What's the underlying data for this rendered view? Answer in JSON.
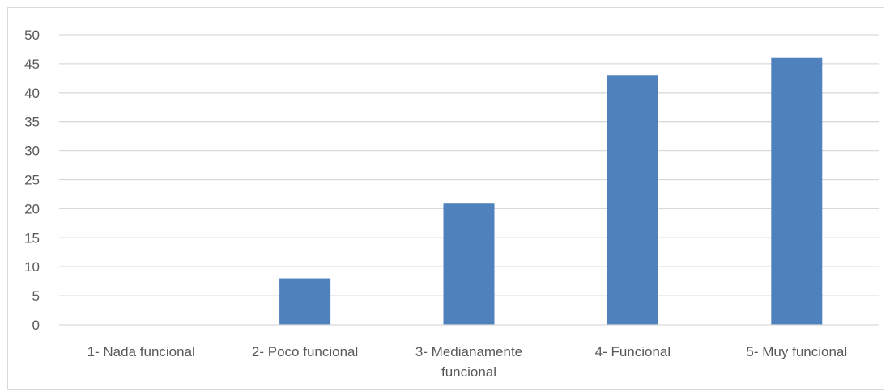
{
  "chart_data": {
    "type": "bar",
    "title": "",
    "xlabel": "",
    "ylabel": "",
    "categories": [
      [
        "1- Nada funcional"
      ],
      [
        "2- Poco funcional"
      ],
      [
        "3- Medianamente",
        "funcional"
      ],
      [
        "4- Funcional"
      ],
      [
        "5- Muy funcional"
      ]
    ],
    "values": [
      0,
      8,
      21,
      43,
      46
    ],
    "ylim": [
      0,
      50
    ],
    "yticks": [
      "0",
      "5",
      "10",
      "15",
      "20",
      "25",
      "30",
      "35",
      "40",
      "45",
      "50"
    ],
    "grid": true,
    "legend": "none",
    "colors": {
      "bar": "#4f81bd",
      "grid": "#d9d9d9",
      "axis": "#d9d9d9",
      "text": "#595959"
    }
  }
}
